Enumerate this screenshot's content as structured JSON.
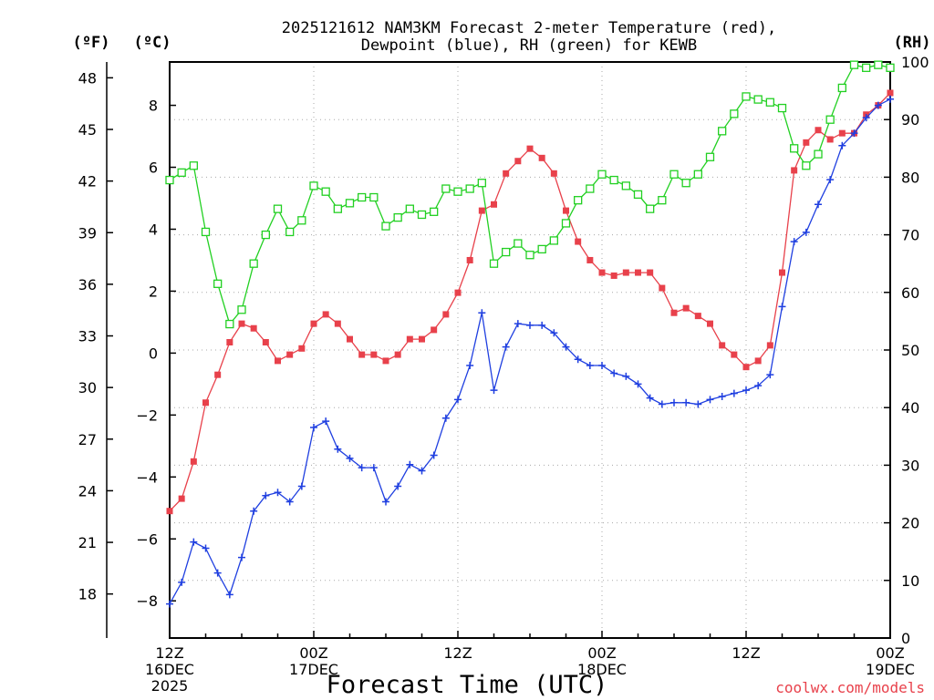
{
  "chart_data": {
    "type": "line",
    "title_line1": "2025121612 NAM3KM Forecast 2-meter Temperature (red),",
    "title_line2": "Dewpoint (blue), RH (green) for KEWB",
    "xlabel": "Forecast Time (UTC)",
    "credit": "coolwx.com/models",
    "unit_f": "(ºF)",
    "unit_c": "(ºC)",
    "unit_rh": "(RH)",
    "x_ticks": [
      {
        "hour": 0,
        "line1": "12Z",
        "line2": "16DEC",
        "line3": "2025"
      },
      {
        "hour": 12,
        "line1": "00Z",
        "line2": "17DEC",
        "line3": ""
      },
      {
        "hour": 24,
        "line1": "12Z",
        "line2": "",
        "line3": ""
      },
      {
        "hour": 36,
        "line1": "00Z",
        "line2": "18DEC",
        "line3": ""
      },
      {
        "hour": 48,
        "line1": "12Z",
        "line2": "",
        "line3": ""
      },
      {
        "hour": 60,
        "line1": "00Z",
        "line2": "19DEC",
        "line3": ""
      }
    ],
    "xlim": [
      0,
      60
    ],
    "ylim_c": [
      -9.2,
      9.4
    ],
    "ylim_rh": [
      0,
      100
    ],
    "c_ticks": [
      "-8",
      "-6",
      "-4",
      "-2",
      "0",
      "2",
      "4",
      "6",
      "8"
    ],
    "f_ticks": [
      "18",
      "21",
      "24",
      "27",
      "30",
      "33",
      "36",
      "39",
      "42",
      "45",
      "48"
    ],
    "rh_ticks": [
      "0",
      "10",
      "20",
      "30",
      "40",
      "50",
      "60",
      "70",
      "80",
      "90",
      "100"
    ],
    "grid": true,
    "colors": {
      "temperature": "#e8414b",
      "dewpoint": "#1f3fe0",
      "rh": "#22d022"
    },
    "series": [
      {
        "key": "temperature",
        "marker": "filled-square",
        "values": [
          -5.1,
          -4.7,
          -3.5,
          -1.6,
          -0.7,
          0.35,
          0.95,
          0.8,
          0.35,
          -0.25,
          -0.05,
          0.15,
          0.95,
          1.25,
          0.95,
          0.45,
          -0.05,
          -0.05,
          -0.25,
          -0.05,
          0.45,
          0.45,
          0.75,
          1.25,
          1.95,
          3.0,
          4.6,
          4.8,
          5.8,
          6.2,
          6.6,
          6.3,
          5.8,
          4.6,
          3.6,
          3.0,
          2.6,
          2.5,
          2.6,
          2.6,
          2.6,
          2.1,
          1.3,
          1.45,
          1.2,
          0.95,
          0.25,
          -0.05,
          -0.45,
          -0.25,
          0.25,
          2.6,
          5.9,
          6.8,
          7.2,
          6.9,
          7.1,
          7.1,
          7.7,
          8.0,
          8.4
        ]
      },
      {
        "key": "dewpoint",
        "marker": "plus",
        "values": [
          -8.1,
          -7.4,
          -6.1,
          -6.3,
          -7.1,
          -7.8,
          -6.6,
          -5.1,
          -4.6,
          -4.5,
          -4.8,
          -4.3,
          -2.4,
          -2.2,
          -3.1,
          -3.4,
          -3.7,
          -3.7,
          -4.8,
          -4.3,
          -3.6,
          -3.8,
          -3.3,
          -2.1,
          -1.5,
          -0.4,
          1.3,
          -1.2,
          0.2,
          0.95,
          0.9,
          0.9,
          0.65,
          0.2,
          -0.2,
          -0.4,
          -0.4,
          -0.65,
          -0.75,
          -1.0,
          -1.45,
          -1.65,
          -1.6,
          -1.6,
          -1.65,
          -1.5,
          -1.4,
          -1.3,
          -1.2,
          -1.05,
          -0.7,
          1.5,
          3.6,
          3.9,
          4.8,
          5.6,
          6.7,
          7.1,
          7.6,
          8.0,
          8.2
        ]
      },
      {
        "key": "rh",
        "marker": "open-square",
        "values": [
          79.5,
          80.8,
          82,
          70.5,
          61.5,
          54.5,
          57,
          65,
          70,
          74.5,
          70.5,
          72.5,
          78.5,
          77.5,
          74.5,
          75.5,
          76.5,
          76.5,
          71.5,
          73,
          74.5,
          73.5,
          74,
          78,
          77.5,
          78,
          79,
          65,
          67,
          68.5,
          66.5,
          67.5,
          69,
          72,
          76,
          78,
          80.5,
          79.5,
          78.5,
          77,
          74.5,
          76,
          80.5,
          79,
          80.5,
          83.5,
          88,
          91,
          94,
          93.5,
          93,
          92,
          85,
          82,
          84,
          90,
          95.5,
          99.5,
          99,
          99.5,
          99
        ]
      }
    ]
  }
}
